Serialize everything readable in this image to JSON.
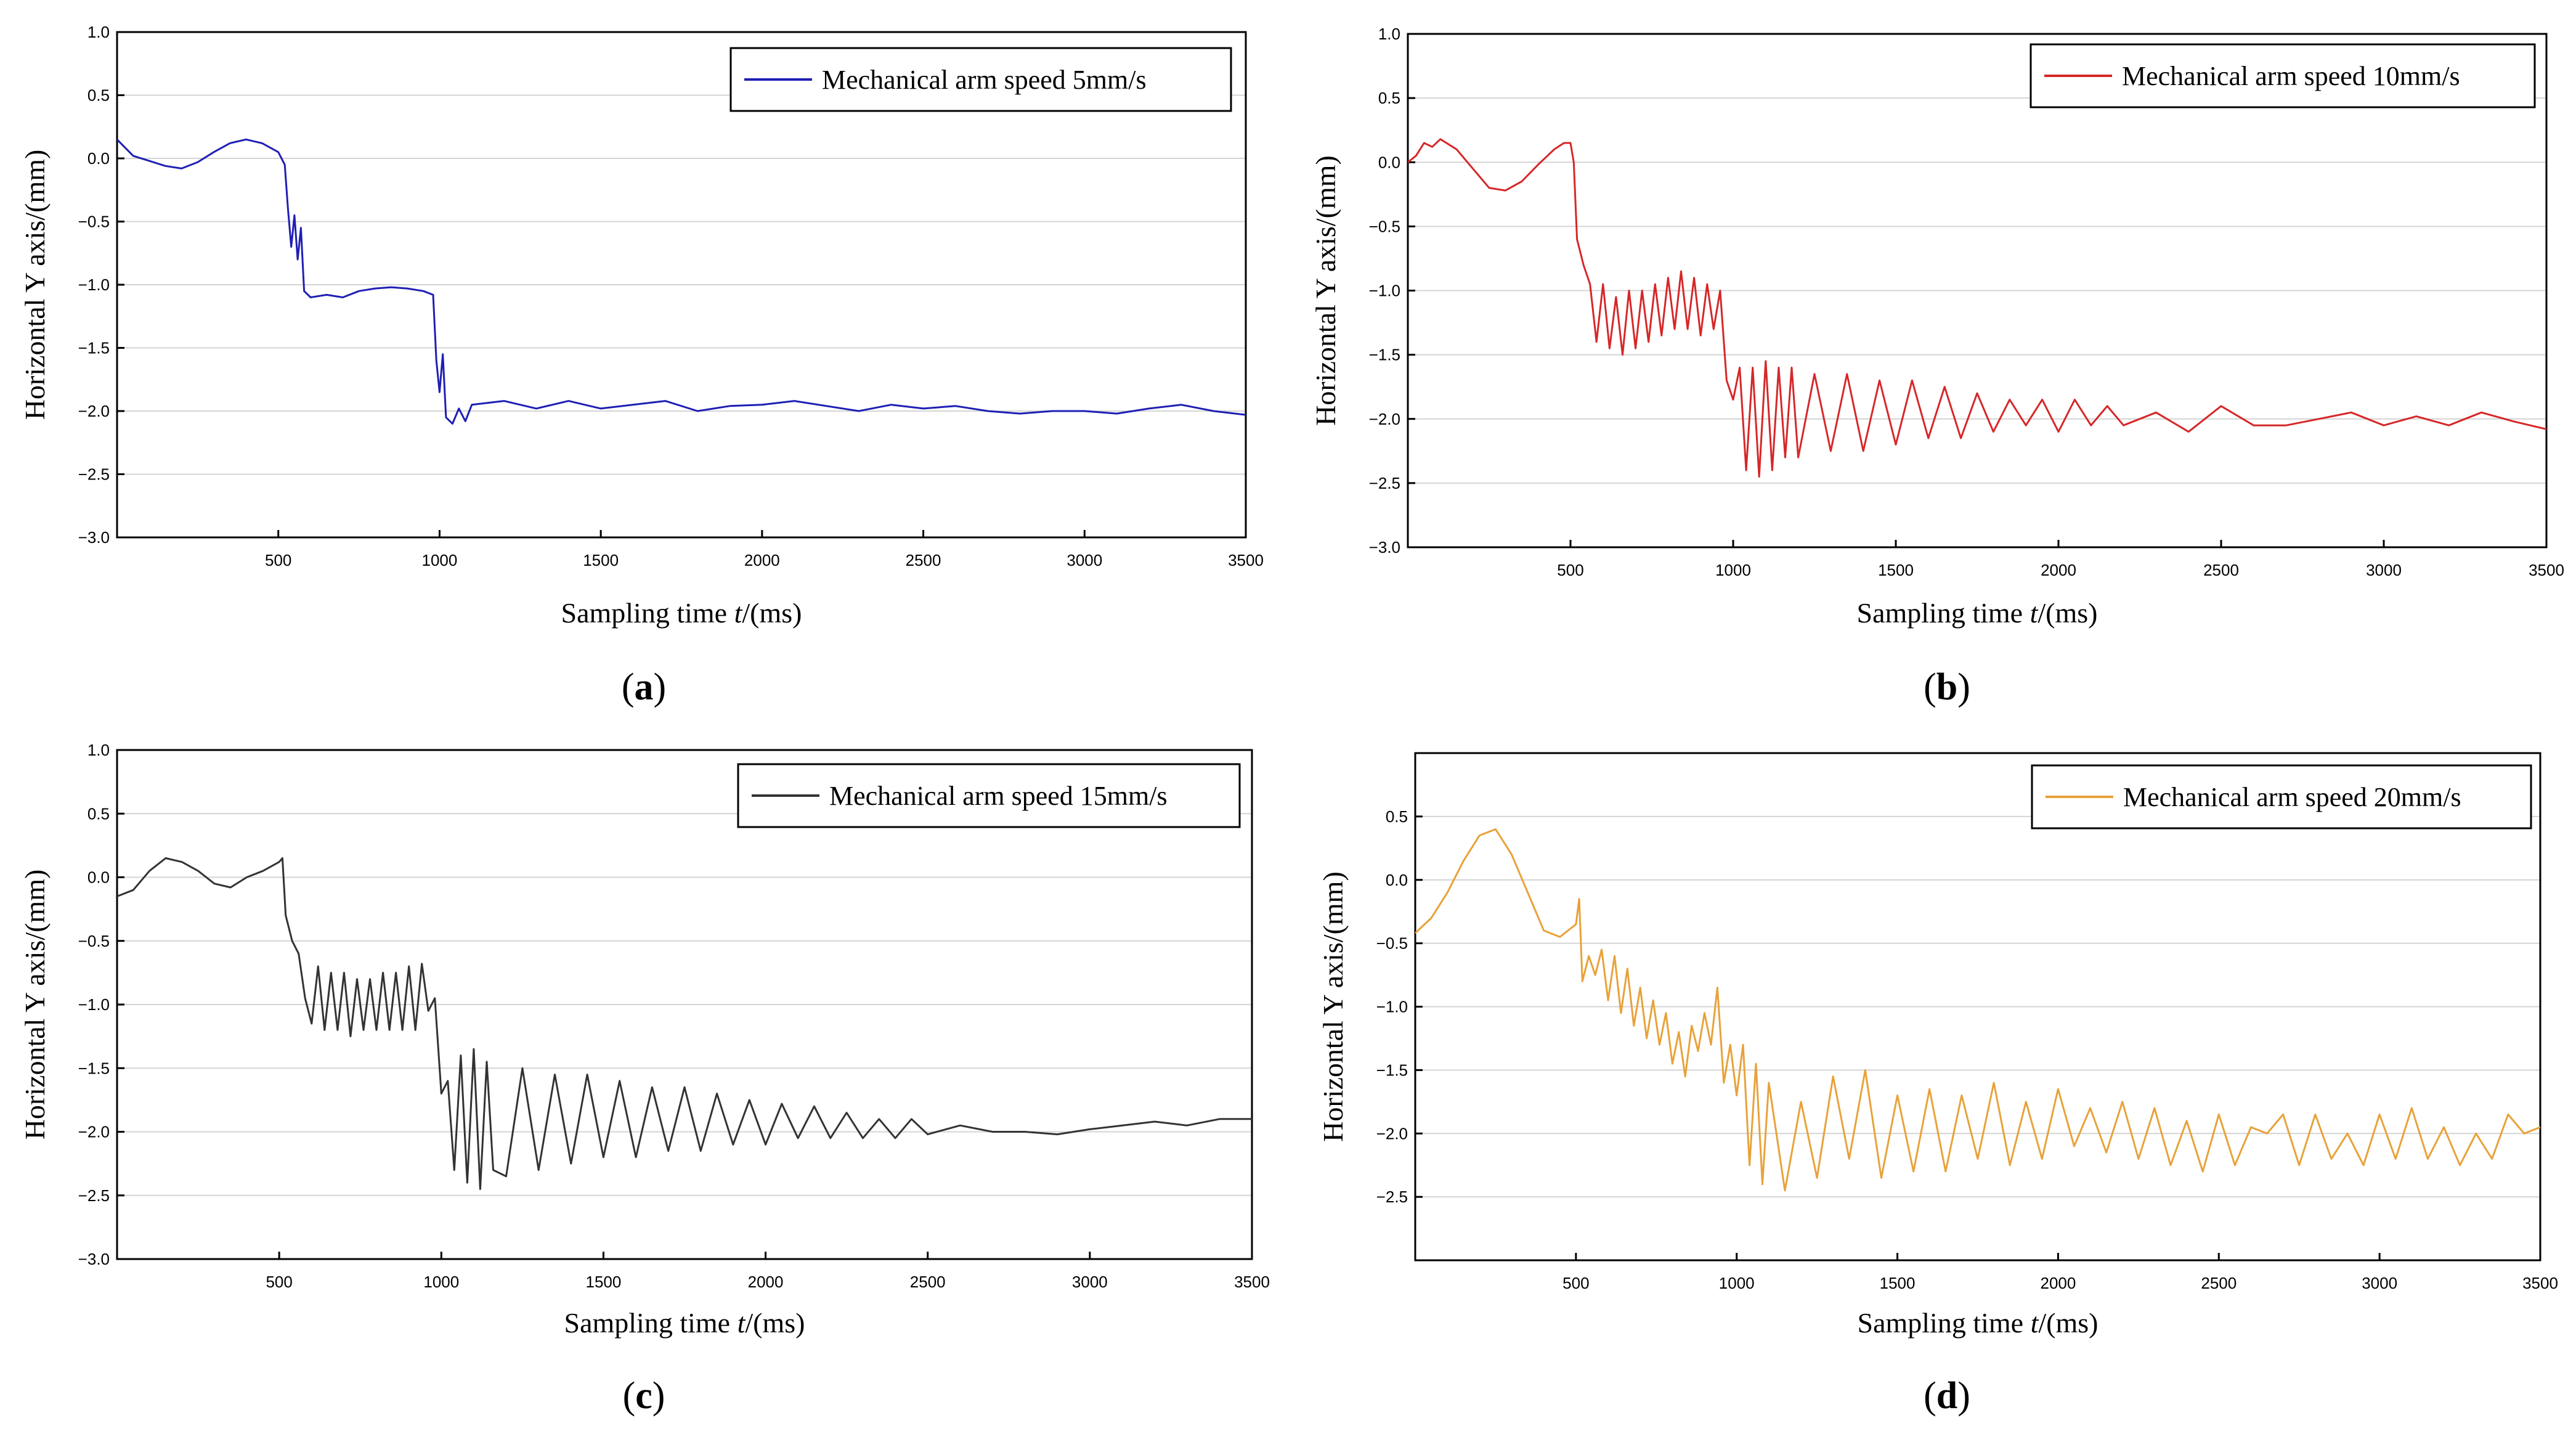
{
  "chart_data": [
    {
      "type": "line",
      "panel_label": "a",
      "xlabel": "Sampling time t/(ms)",
      "ylabel": "Horizontal Y axis/(mm)",
      "xlim": [
        0,
        3500
      ],
      "ylim": [
        -3.0,
        1.0
      ],
      "xticks": [
        500,
        1000,
        1500,
        2000,
        2500,
        3000,
        3500
      ],
      "yticks": [
        1.0,
        0.5,
        0.0,
        -0.5,
        -1.0,
        -1.5,
        -2.0,
        -2.5,
        -3.0
      ],
      "legend": "top-right",
      "grid": "horizontal",
      "series": [
        {
          "name": "Mechanical arm speed 5mm/s",
          "color": "#1f1fb4",
          "x": [
            0,
            50,
            100,
            150,
            200,
            250,
            300,
            350,
            400,
            450,
            500,
            520,
            530,
            540,
            550,
            560,
            570,
            580,
            600,
            650,
            700,
            750,
            800,
            850,
            900,
            950,
            980,
            990,
            1000,
            1010,
            1020,
            1040,
            1060,
            1080,
            1100,
            1200,
            1300,
            1400,
            1500,
            1600,
            1700,
            1800,
            1900,
            2000,
            2100,
            2200,
            2300,
            2400,
            2500,
            2600,
            2700,
            2800,
            2900,
            3000,
            3100,
            3200,
            3300,
            3400,
            3500
          ],
          "y": [
            0.15,
            0.02,
            -0.02,
            -0.06,
            -0.08,
            -0.03,
            0.05,
            0.12,
            0.15,
            0.12,
            0.05,
            -0.05,
            -0.4,
            -0.7,
            -0.45,
            -0.8,
            -0.55,
            -1.05,
            -1.1,
            -1.08,
            -1.1,
            -1.05,
            -1.03,
            -1.02,
            -1.03,
            -1.05,
            -1.08,
            -1.6,
            -1.85,
            -1.55,
            -2.05,
            -2.1,
            -1.98,
            -2.08,
            -1.95,
            -1.92,
            -1.98,
            -1.92,
            -1.98,
            -1.95,
            -1.92,
            -2.0,
            -1.96,
            -1.95,
            -1.92,
            -1.96,
            -2.0,
            -1.95,
            -1.98,
            -1.96,
            -2.0,
            -2.02,
            -2.0,
            -2.0,
            -2.02,
            -1.98,
            -1.95,
            -2.0,
            -2.03
          ]
        }
      ]
    },
    {
      "type": "line",
      "panel_label": "b",
      "xlabel": "Sampling time t/(ms)",
      "ylabel": "Horizontal Y axis/(mm)",
      "xlim": [
        0,
        3500
      ],
      "ylim": [
        -3.0,
        1.0
      ],
      "xticks": [
        500,
        1000,
        1500,
        2000,
        2500,
        3000,
        3500
      ],
      "yticks": [
        1.0,
        0.5,
        0.0,
        -0.5,
        -1.0,
        -1.5,
        -2.0,
        -2.5,
        -3.0
      ],
      "legend": "top-right",
      "grid": "horizontal",
      "series": [
        {
          "name": "Mechanical arm speed 10mm/s",
          "color": "#d62728",
          "x": [
            0,
            25,
            50,
            75,
            100,
            150,
            200,
            250,
            300,
            350,
            400,
            450,
            480,
            500,
            510,
            520,
            540,
            560,
            580,
            600,
            620,
            640,
            660,
            680,
            700,
            720,
            740,
            760,
            780,
            800,
            820,
            840,
            860,
            880,
            900,
            920,
            940,
            960,
            980,
            1000,
            1020,
            1040,
            1060,
            1080,
            1100,
            1120,
            1140,
            1160,
            1180,
            1200,
            1250,
            1300,
            1350,
            1400,
            1450,
            1500,
            1550,
            1600,
            1650,
            1700,
            1750,
            1800,
            1850,
            1900,
            1950,
            2000,
            2050,
            2100,
            2150,
            2200,
            2300,
            2400,
            2500,
            2600,
            2700,
            2800,
            2900,
            3000,
            3100,
            3200,
            3300,
            3400,
            3500
          ],
          "y": [
            0.0,
            0.05,
            0.15,
            0.12,
            0.18,
            0.1,
            -0.05,
            -0.2,
            -0.22,
            -0.15,
            -0.02,
            0.1,
            0.15,
            0.15,
            0.0,
            -0.6,
            -0.8,
            -0.95,
            -1.4,
            -0.95,
            -1.45,
            -1.05,
            -1.5,
            -1.0,
            -1.45,
            -1.0,
            -1.4,
            -0.95,
            -1.35,
            -0.9,
            -1.3,
            -0.85,
            -1.3,
            -0.9,
            -1.35,
            -0.95,
            -1.3,
            -1.0,
            -1.7,
            -1.85,
            -1.6,
            -2.4,
            -1.6,
            -2.45,
            -1.55,
            -2.4,
            -1.6,
            -2.3,
            -1.6,
            -2.3,
            -1.65,
            -2.25,
            -1.65,
            -2.25,
            -1.7,
            -2.2,
            -1.7,
            -2.15,
            -1.75,
            -2.15,
            -1.8,
            -2.1,
            -1.85,
            -2.05,
            -1.85,
            -2.1,
            -1.85,
            -2.05,
            -1.9,
            -2.05,
            -1.95,
            -2.1,
            -1.9,
            -2.05,
            -2.05,
            -2.0,
            -1.95,
            -2.05,
            -1.98,
            -2.05,
            -1.95,
            -2.02,
            -2.08
          ]
        }
      ]
    },
    {
      "type": "line",
      "panel_label": "c",
      "xlabel": "Sampling time t/(ms)",
      "ylabel": "Horizontal Y axis/(mm)",
      "xlim": [
        0,
        3500
      ],
      "ylim": [
        -3.0,
        1.0
      ],
      "xticks": [
        500,
        1000,
        1500,
        2000,
        2500,
        3000,
        3500
      ],
      "yticks": [
        1.0,
        0.5,
        0.0,
        -0.5,
        -1.0,
        -1.5,
        -2.0,
        -2.5,
        -3.0
      ],
      "legend": "top-right",
      "grid": "horizontal",
      "series": [
        {
          "name": "Mechanical arm speed 15mm/s",
          "color": "#333333",
          "x": [
            0,
            50,
            100,
            150,
            200,
            250,
            300,
            350,
            400,
            450,
            500,
            510,
            520,
            540,
            560,
            580,
            600,
            620,
            640,
            660,
            680,
            700,
            720,
            740,
            760,
            780,
            800,
            820,
            840,
            860,
            880,
            900,
            920,
            940,
            960,
            980,
            1000,
            1020,
            1040,
            1060,
            1080,
            1100,
            1120,
            1140,
            1160,
            1200,
            1250,
            1300,
            1350,
            1400,
            1450,
            1500,
            1550,
            1600,
            1650,
            1700,
            1750,
            1800,
            1850,
            1900,
            1950,
            2000,
            2050,
            2100,
            2150,
            2200,
            2250,
            2300,
            2350,
            2400,
            2450,
            2500,
            2600,
            2700,
            2800,
            2900,
            3000,
            3100,
            3200,
            3300,
            3400,
            3500
          ],
          "y": [
            -0.15,
            -0.1,
            0.05,
            0.15,
            0.12,
            0.05,
            -0.05,
            -0.08,
            0.0,
            0.05,
            0.12,
            0.15,
            -0.3,
            -0.5,
            -0.6,
            -0.95,
            -1.15,
            -0.7,
            -1.2,
            -0.75,
            -1.2,
            -0.75,
            -1.25,
            -0.8,
            -1.2,
            -0.8,
            -1.2,
            -0.75,
            -1.2,
            -0.75,
            -1.2,
            -0.7,
            -1.2,
            -0.68,
            -1.05,
            -0.95,
            -1.7,
            -1.6,
            -2.3,
            -1.4,
            -2.4,
            -1.35,
            -2.45,
            -1.45,
            -2.3,
            -2.35,
            -1.5,
            -2.3,
            -1.55,
            -2.25,
            -1.55,
            -2.2,
            -1.6,
            -2.2,
            -1.65,
            -2.15,
            -1.65,
            -2.15,
            -1.7,
            -2.1,
            -1.75,
            -2.1,
            -1.78,
            -2.05,
            -1.8,
            -2.05,
            -1.85,
            -2.05,
            -1.9,
            -2.05,
            -1.9,
            -2.02,
            -1.95,
            -2.0,
            -2.0,
            -2.02,
            -1.98,
            -1.95,
            -1.92,
            -1.95,
            -1.9,
            -1.9
          ]
        }
      ]
    },
    {
      "type": "line",
      "panel_label": "d",
      "xlabel": "Sampling time t/(ms)",
      "ylabel": "Horizontal Y axis/(mm)",
      "xlim": [
        0,
        3500
      ],
      "ylim": [
        -3.0,
        1.0
      ],
      "xticks": [
        500,
        1000,
        1500,
        2000,
        2500,
        3000,
        3500
      ],
      "yticks": [
        0.5,
        0.0,
        -0.5,
        -1.0,
        -1.5,
        -2.0,
        -2.5
      ],
      "legend": "top-right",
      "grid": "horizontal",
      "series": [
        {
          "name": "Mechanical arm speed 20mm/s",
          "color": "#e8a23a",
          "x": [
            0,
            50,
            100,
            150,
            200,
            250,
            300,
            350,
            400,
            450,
            500,
            510,
            520,
            540,
            560,
            580,
            600,
            620,
            640,
            660,
            680,
            700,
            720,
            740,
            760,
            780,
            800,
            820,
            840,
            860,
            880,
            900,
            920,
            940,
            960,
            980,
            1000,
            1020,
            1040,
            1060,
            1080,
            1100,
            1150,
            1200,
            1250,
            1300,
            1350,
            1400,
            1450,
            1500,
            1550,
            1600,
            1650,
            1700,
            1750,
            1800,
            1850,
            1900,
            1950,
            2000,
            2050,
            2100,
            2150,
            2200,
            2250,
            2300,
            2350,
            2400,
            2450,
            2500,
            2550,
            2600,
            2650,
            2700,
            2750,
            2800,
            2850,
            2900,
            2950,
            3000,
            3050,
            3100,
            3150,
            3200,
            3250,
            3300,
            3350,
            3400,
            3450,
            3500
          ],
          "y": [
            -0.42,
            -0.3,
            -0.1,
            0.15,
            0.35,
            0.4,
            0.2,
            -0.1,
            -0.4,
            -0.45,
            -0.35,
            -0.15,
            -0.8,
            -0.6,
            -0.75,
            -0.55,
            -0.95,
            -0.6,
            -1.05,
            -0.7,
            -1.15,
            -0.85,
            -1.25,
            -0.95,
            -1.3,
            -1.05,
            -1.45,
            -1.2,
            -1.55,
            -1.15,
            -1.35,
            -1.05,
            -1.3,
            -0.85,
            -1.6,
            -1.3,
            -1.7,
            -1.3,
            -2.25,
            -1.45,
            -2.4,
            -1.6,
            -2.45,
            -1.75,
            -2.35,
            -1.55,
            -2.2,
            -1.5,
            -2.35,
            -1.7,
            -2.3,
            -1.65,
            -2.3,
            -1.7,
            -2.2,
            -1.6,
            -2.25,
            -1.75,
            -2.2,
            -1.65,
            -2.1,
            -1.8,
            -2.15,
            -1.75,
            -2.2,
            -1.8,
            -2.25,
            -1.9,
            -2.3,
            -1.85,
            -2.25,
            -1.95,
            -2.0,
            -1.85,
            -2.25,
            -1.85,
            -2.2,
            -2.0,
            -2.25,
            -1.85,
            -2.2,
            -1.8,
            -2.2,
            -1.95,
            -2.25,
            -2.0,
            -2.2,
            -1.85,
            -2.0,
            -1.95
          ]
        }
      ]
    }
  ]
}
